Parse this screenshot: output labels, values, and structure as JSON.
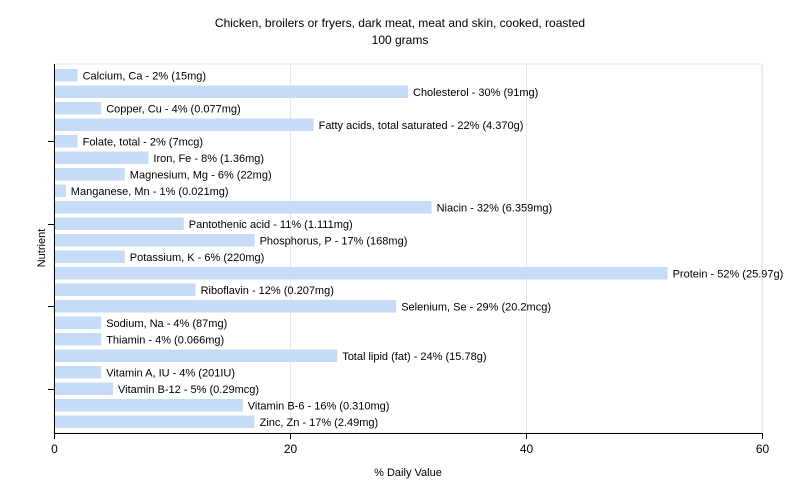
{
  "chart_data": {
    "type": "bar",
    "orientation": "horizontal",
    "title": "Chicken, broilers or fryers, dark meat, meat and skin, cooked, roasted",
    "subtitle": "100 grams",
    "xlabel": "% Daily Value",
    "ylabel": "Nutrient",
    "xlim": [
      0,
      60
    ],
    "xticks": [
      0,
      20,
      40,
      60
    ],
    "grid": true,
    "bar_color": "#c6dcf6",
    "categories": [
      "Calcium, Ca",
      "Cholesterol",
      "Copper, Cu",
      "Fatty acids, total saturated",
      "Folate, total",
      "Iron, Fe",
      "Magnesium, Mg",
      "Manganese, Mn",
      "Niacin",
      "Pantothenic acid",
      "Phosphorus, P",
      "Potassium, K",
      "Protein",
      "Riboflavin",
      "Selenium, Se",
      "Sodium, Na",
      "Thiamin",
      "Total lipid (fat)",
      "Vitamin A, IU",
      "Vitamin B-12",
      "Vitamin B-6",
      "Zinc, Zn"
    ],
    "values": [
      2,
      30,
      4,
      22,
      2,
      8,
      6,
      1,
      32,
      11,
      17,
      6,
      52,
      12,
      29,
      4,
      4,
      24,
      4,
      5,
      16,
      17
    ],
    "labels": [
      "Calcium, Ca - 2% (15mg)",
      "Cholesterol - 30% (91mg)",
      "Copper, Cu - 4% (0.077mg)",
      "Fatty acids, total saturated - 22% (4.370g)",
      "Folate, total - 2% (7mcg)",
      "Iron, Fe - 8% (1.36mg)",
      "Magnesium, Mg - 6% (22mg)",
      "Manganese, Mn - 1% (0.021mg)",
      "Niacin - 32% (6.359mg)",
      "Pantothenic acid - 11% (1.111mg)",
      "Phosphorus, P - 17% (168mg)",
      "Potassium, K - 6% (220mg)",
      "Protein - 52% (25.97g)",
      "Riboflavin - 12% (0.207mg)",
      "Selenium, Se - 29% (20.2mcg)",
      "Sodium, Na - 4% (87mg)",
      "Thiamin - 4% (0.066mg)",
      "Total lipid (fat) - 24% (15.78g)",
      "Vitamin A, IU - 4% (201IU)",
      "Vitamin B-12 - 5% (0.29mcg)",
      "Vitamin B-6 - 16% (0.310mg)",
      "Zinc, Zn - 17% (2.49mg)"
    ]
  }
}
